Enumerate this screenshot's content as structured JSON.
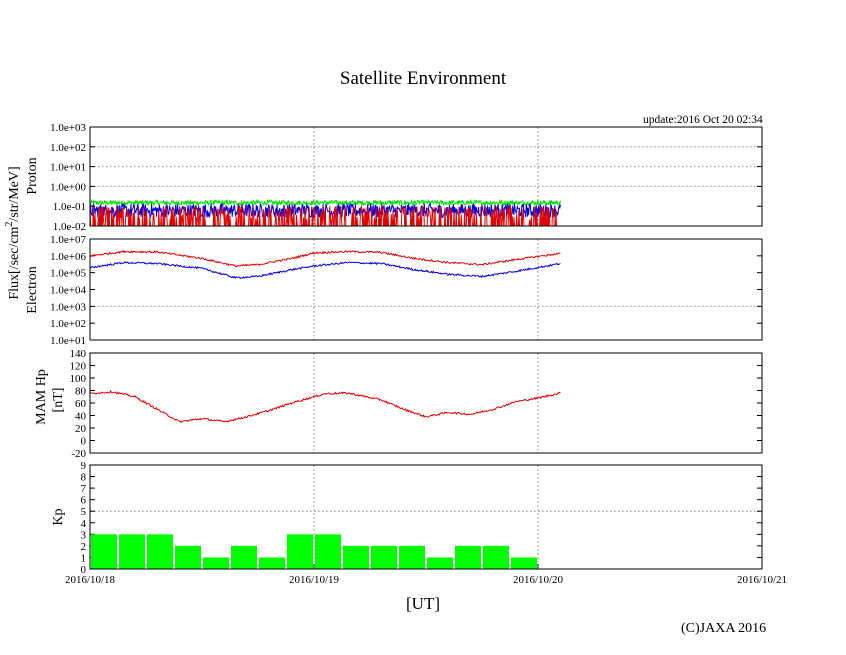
{
  "page": {
    "title": "Satellite Environment",
    "update": "update:2016 Oct 20 02:34",
    "x_unit": "[UT]",
    "copyright": "(C)JAXA 2016"
  },
  "colors": {
    "red": "#e00000",
    "blue": "#0000dd",
    "green": "#00e000",
    "bar": "#00ff00",
    "grid": "#888888"
  },
  "chart_data": [
    {
      "id": "proton",
      "type": "line",
      "scale": "log",
      "ylabel_line1": "Flux[/sec/cm",
      "ylabel_sup": "2",
      "ylabel_line2": "/str/MeV]",
      "panel_label": "Proton",
      "ylim": [
        0.01,
        1000
      ],
      "ticks": [
        0.01,
        0.1,
        1,
        10,
        100,
        1000
      ],
      "tick_labels": [
        "1.0e-02",
        "1.0e-01",
        "1.0e+00",
        "1.0e+01",
        "1.0e+02",
        "1.0e+03"
      ],
      "series": [
        {
          "name": "green",
          "color": "green",
          "level": 0.15,
          "noise": 0.12,
          "style": "band"
        },
        {
          "name": "blue",
          "color": "blue",
          "level": 0.06,
          "noise": 0.35,
          "style": "band"
        },
        {
          "name": "red",
          "color": "red",
          "level": 0.02,
          "noise": 0.5,
          "style": "spikes"
        }
      ],
      "x_end_days": 2.1
    },
    {
      "id": "electron",
      "type": "line",
      "scale": "log",
      "panel_label": "Electron",
      "ylim": [
        10,
        10000000
      ],
      "ticks": [
        10,
        100,
        1000,
        10000,
        100000,
        1000000,
        10000000
      ],
      "tick_labels": [
        "1.0e+01",
        "1.0e+02",
        "1.0e+03",
        "1.0e+04",
        "1.0e+05",
        "1.0e+06",
        "1.0e+07"
      ],
      "series": [
        {
          "name": "red",
          "color": "red",
          "x": [
            0,
            0.15,
            0.3,
            0.5,
            0.65,
            0.75,
            0.9,
            1.0,
            1.15,
            1.3,
            1.45,
            1.6,
            1.75,
            1.9,
            2.1
          ],
          "y": [
            1000000,
            1800000,
            1700000,
            700000,
            250000,
            300000,
            700000,
            1500000,
            1800000,
            1600000,
            700000,
            400000,
            300000,
            600000,
            1400000
          ]
        },
        {
          "name": "blue",
          "color": "blue",
          "x": [
            0,
            0.15,
            0.3,
            0.5,
            0.65,
            0.75,
            0.9,
            1.0,
            1.15,
            1.3,
            1.45,
            1.6,
            1.75,
            1.9,
            2.1
          ],
          "y": [
            200000,
            400000,
            350000,
            180000,
            50000,
            60000,
            150000,
            250000,
            400000,
            350000,
            150000,
            80000,
            60000,
            120000,
            350000
          ]
        }
      ],
      "x_end_days": 2.1
    },
    {
      "id": "mam",
      "type": "line",
      "scale": "linear",
      "ylabel_line1": "MAM Hp",
      "ylabel_line2": "[nT]",
      "ylim": [
        -20,
        140
      ],
      "ticks": [
        -20,
        0,
        20,
        40,
        60,
        80,
        100,
        120,
        140
      ],
      "tick_labels": [
        "-20",
        "0",
        "20",
        "40",
        "60",
        "80",
        "100",
        "120",
        "140"
      ],
      "series": [
        {
          "name": "Hp",
          "color": "red",
          "x": [
            0,
            0.1,
            0.2,
            0.3,
            0.4,
            0.5,
            0.6,
            0.7,
            0.8,
            0.9,
            1.0,
            1.05,
            1.15,
            1.3,
            1.4,
            1.5,
            1.6,
            1.7,
            1.8,
            1.9,
            2.0,
            2.05,
            2.1
          ],
          "y": [
            75,
            78,
            70,
            50,
            30,
            35,
            30,
            38,
            48,
            60,
            70,
            75,
            76,
            65,
            50,
            38,
            45,
            42,
            50,
            62,
            68,
            72,
            76
          ]
        }
      ],
      "x_end_days": 2.1
    },
    {
      "id": "kp",
      "type": "bar",
      "ylabel_line1": "Kp",
      "ylim": [
        0,
        9
      ],
      "ticks": [
        0,
        1,
        2,
        3,
        4,
        5,
        6,
        7,
        8,
        9
      ],
      "tick_labels": [
        "0",
        "1",
        "2",
        "3",
        "4",
        "5",
        "6",
        "7",
        "8",
        "9"
      ],
      "values": [
        3,
        3,
        3,
        2,
        1,
        2,
        1,
        3,
        3,
        2,
        2,
        2,
        1,
        2,
        2,
        1
      ],
      "bin_hours": 3
    }
  ],
  "x_axis": {
    "range_days": [
      0,
      3
    ],
    "ticks": [
      0,
      1,
      2,
      3
    ],
    "tick_labels": [
      "2016/10/18",
      "2016/10/19",
      "2016/10/20",
      "2016/10/21"
    ]
  },
  "hgrid": {
    "proton": [
      10
    ],
    "electron": [
      1000
    ],
    "mam": [],
    "kp": [
      5
    ]
  }
}
